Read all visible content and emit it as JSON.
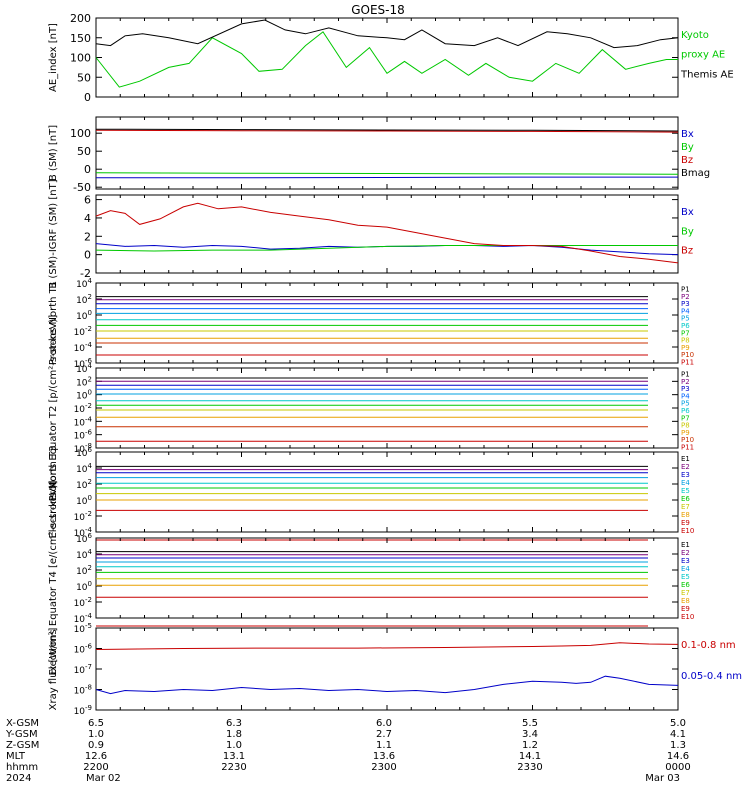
{
  "title": "GOES-18",
  "colors": {
    "black": "#000000",
    "green": "#00c800",
    "red": "#c80000",
    "blue": "#0000c8"
  },
  "chart_data": [
    {
      "type": "line",
      "ylabel": "AE_index [nT]",
      "ylim": [
        0,
        200
      ],
      "yticks": [
        "0",
        "50",
        "100",
        "150",
        "200"
      ],
      "x_range_hours": [
        0,
        2
      ],
      "series": [
        {
          "name": "Kyoto proxy AE",
          "color_key": "green",
          "x": [
            0,
            0.08,
            0.15,
            0.25,
            0.32,
            0.4,
            0.5,
            0.56,
            0.64,
            0.72,
            0.78,
            0.86,
            0.94,
            1.0,
            1.06,
            1.12,
            1.2,
            1.28,
            1.34,
            1.42,
            1.5,
            1.58,
            1.66,
            1.74,
            1.82,
            1.9,
            1.96,
            2.0
          ],
          "values": [
            100,
            25,
            40,
            75,
            85,
            150,
            110,
            65,
            70,
            130,
            165,
            75,
            125,
            60,
            90,
            60,
            95,
            55,
            85,
            50,
            40,
            85,
            60,
            120,
            70,
            85,
            95,
            95
          ]
        },
        {
          "name": "Themis AE",
          "color_key": "black",
          "x": [
            0,
            0.05,
            0.1,
            0.16,
            0.25,
            0.35,
            0.5,
            0.58,
            0.65,
            0.72,
            0.8,
            0.9,
            1.0,
            1.06,
            1.12,
            1.2,
            1.3,
            1.38,
            1.45,
            1.55,
            1.62,
            1.7,
            1.78,
            1.86,
            1.94,
            2.0
          ],
          "values": [
            135,
            130,
            155,
            160,
            150,
            135,
            185,
            195,
            170,
            160,
            175,
            155,
            150,
            145,
            170,
            135,
            130,
            150,
            130,
            165,
            160,
            150,
            125,
            130,
            145,
            150
          ]
        }
      ]
    },
    {
      "type": "line",
      "ylabel": "B (SM) [nT]",
      "ylim": [
        -55,
        145
      ],
      "yticks": [
        "-50",
        "0",
        "50",
        "100"
      ],
      "x_range_hours": [
        0,
        2
      ],
      "series": [
        {
          "name": "Bx",
          "color_key": "blue",
          "x": [
            0,
            0.5,
            1.0,
            1.5,
            2.0
          ],
          "values": [
            -24,
            -24,
            -23,
            -22,
            -22
          ]
        },
        {
          "name": "By",
          "color_key": "green",
          "x": [
            0,
            0.5,
            1.0,
            1.5,
            2.0
          ],
          "values": [
            -10,
            -11,
            -12,
            -13,
            -14
          ]
        },
        {
          "name": "Bz",
          "color_key": "red",
          "x": [
            0,
            0.5,
            1.0,
            1.5,
            2.0
          ],
          "values": [
            108,
            107,
            106,
            105,
            103
          ]
        },
        {
          "name": "Bmag",
          "color_key": "black",
          "x": [
            0,
            0.5,
            1.0,
            1.5,
            2.0
          ],
          "values": [
            111,
            110,
            109,
            108,
            106
          ]
        }
      ]
    },
    {
      "type": "line",
      "ylabel": "B (SM)-IGRF (SM) [nT]",
      "ylim": [
        -2,
        6.5
      ],
      "yticks": [
        "-2",
        "0",
        "2",
        "4",
        "6"
      ],
      "x_range_hours": [
        0,
        2
      ],
      "series": [
        {
          "name": "Bx",
          "color_key": "blue",
          "x": [
            0,
            0.1,
            0.2,
            0.3,
            0.4,
            0.5,
            0.6,
            0.7,
            0.8,
            0.9,
            1.0,
            1.1,
            1.2,
            1.3,
            1.4,
            1.5,
            1.6,
            1.7,
            1.8,
            1.9,
            2.0
          ],
          "values": [
            1.2,
            0.9,
            1.0,
            0.8,
            1.0,
            0.9,
            0.6,
            0.7,
            0.9,
            0.8,
            0.9,
            0.9,
            1.0,
            1.0,
            0.9,
            1.0,
            0.8,
            0.5,
            0.3,
            0.1,
            0.0
          ]
        },
        {
          "name": "By",
          "color_key": "green",
          "x": [
            0,
            0.2,
            0.4,
            0.6,
            0.8,
            1.0,
            1.2,
            1.4,
            1.6,
            1.8,
            2.0
          ],
          "values": [
            0.5,
            0.4,
            0.5,
            0.5,
            0.7,
            0.9,
            1.0,
            1.0,
            1.0,
            1.0,
            1.0
          ]
        },
        {
          "name": "Bz",
          "color_key": "red",
          "x": [
            0,
            0.05,
            0.1,
            0.15,
            0.22,
            0.3,
            0.35,
            0.42,
            0.5,
            0.6,
            0.7,
            0.8,
            0.9,
            1.0,
            1.1,
            1.2,
            1.3,
            1.4,
            1.5,
            1.6,
            1.7,
            1.8,
            1.9,
            2.0
          ],
          "values": [
            4.2,
            4.8,
            4.5,
            3.3,
            3.9,
            5.2,
            5.6,
            5.0,
            5.2,
            4.6,
            4.2,
            3.8,
            3.2,
            3.0,
            2.4,
            1.8,
            1.2,
            1.0,
            1.0,
            0.9,
            0.4,
            -0.2,
            -0.5,
            -0.9
          ]
        }
      ]
    },
    {
      "type": "line",
      "log_scale": true,
      "ylabel": "Protons North T1",
      "ylim_log10": [
        -6,
        4
      ],
      "ytick_exponents": [
        -6,
        -4,
        -2,
        0,
        2,
        4
      ],
      "x_range_hours": [
        0,
        2
      ],
      "series": [
        {
          "name": "P1",
          "color_key": "p1",
          "values": [
            2.3
          ]
        },
        {
          "name": "P2",
          "color_key": "p2",
          "values": [
            1.9
          ]
        },
        {
          "name": "P3",
          "color_key": "p3",
          "values": [
            1.4
          ]
        },
        {
          "name": "P4",
          "color_key": "p4",
          "values": [
            0.8
          ]
        },
        {
          "name": "P5",
          "color_key": "p5",
          "values": [
            0.2
          ]
        },
        {
          "name": "P6",
          "color_key": "p6",
          "values": [
            -0.6
          ]
        },
        {
          "name": "P7",
          "color_key": "p7",
          "values": [
            -1.3
          ]
        },
        {
          "name": "P8",
          "color_key": "p8",
          "values": [
            -2.0
          ]
        },
        {
          "name": "P9",
          "color_key": "p9",
          "values": [
            -2.9
          ]
        },
        {
          "name": "P10",
          "color_key": "p10",
          "values": [
            -3.5
          ]
        },
        {
          "name": "P11",
          "color_key": "p11",
          "values": [
            -5.0
          ]
        }
      ]
    },
    {
      "type": "line",
      "log_scale": true,
      "ylabel": "Protons Equator T2 [p/(cm²-s-sr-keV)]",
      "ylim_log10": [
        -8,
        4
      ],
      "ytick_exponents": [
        -8,
        -6,
        -4,
        -2,
        0,
        2,
        4
      ],
      "x_range_hours": [
        0,
        2
      ],
      "series": [
        {
          "name": "P1",
          "color_key": "p1",
          "values": [
            2.5
          ]
        },
        {
          "name": "P2",
          "color_key": "p2",
          "values": [
            2.0
          ]
        },
        {
          "name": "P3",
          "color_key": "p3",
          "values": [
            1.4
          ]
        },
        {
          "name": "P4",
          "color_key": "p4",
          "values": [
            0.8
          ]
        },
        {
          "name": "P5",
          "color_key": "p5",
          "values": [
            0.1
          ]
        },
        {
          "name": "P6",
          "color_key": "p6",
          "values": [
            -0.9
          ]
        },
        {
          "name": "P7",
          "color_key": "p7",
          "values": [
            -1.6
          ]
        },
        {
          "name": "P8",
          "color_key": "p8",
          "values": [
            -2.3
          ]
        },
        {
          "name": "P9",
          "color_key": "p9",
          "values": [
            -3.4
          ]
        },
        {
          "name": "P10",
          "color_key": "p10",
          "values": [
            -4.8
          ]
        },
        {
          "name": "P11",
          "color_key": "p11",
          "values": [
            -7.0
          ]
        }
      ]
    },
    {
      "type": "line",
      "log_scale": true,
      "ylabel": "Electrons North T3",
      "ylim_log10": [
        -4,
        6
      ],
      "ytick_exponents": [
        -4,
        -2,
        0,
        2,
        4,
        6
      ],
      "x_range_hours": [
        0,
        2
      ],
      "series": [
        {
          "name": "E1",
          "color_key": "e1",
          "values": [
            4.2
          ]
        },
        {
          "name": "E2",
          "color_key": "e2",
          "values": [
            3.8
          ]
        },
        {
          "name": "E3",
          "color_key": "e3",
          "values": [
            3.4
          ]
        },
        {
          "name": "E4",
          "color_key": "e4",
          "values": [
            2.8
          ]
        },
        {
          "name": "E5",
          "color_key": "e5",
          "values": [
            2.1
          ]
        },
        {
          "name": "E6",
          "color_key": "e6",
          "values": [
            1.5
          ]
        },
        {
          "name": "E7",
          "color_key": "e7",
          "values": [
            0.8
          ]
        },
        {
          "name": "E8",
          "color_key": "e8",
          "values": [
            0.0
          ]
        },
        {
          "name": "E9",
          "color_key": "e9",
          "values": [
            -1.3
          ]
        },
        {
          "name": "E10",
          "color_key": "e10",
          "values": [
            -5.0
          ]
        }
      ]
    },
    {
      "type": "line",
      "log_scale": true,
      "ylabel": "Electrons Equator T4 [e/(cm²-s-sr-keV)]",
      "ylim_log10": [
        -4,
        6
      ],
      "ytick_exponents": [
        -4,
        -2,
        0,
        2,
        4,
        6
      ],
      "x_range_hours": [
        0,
        2
      ],
      "series": [
        {
          "name": "E1",
          "color_key": "e1",
          "values": [
            4.3
          ]
        },
        {
          "name": "E2",
          "color_key": "e2",
          "values": [
            3.9
          ]
        },
        {
          "name": "E3",
          "color_key": "e3",
          "values": [
            3.5
          ]
        },
        {
          "name": "E4",
          "color_key": "e4",
          "values": [
            3.0
          ]
        },
        {
          "name": "E5",
          "color_key": "e5",
          "values": [
            2.4
          ]
        },
        {
          "name": "E6",
          "color_key": "e6",
          "values": [
            1.7
          ]
        },
        {
          "name": "E7",
          "color_key": "e7",
          "values": [
            0.9
          ]
        },
        {
          "name": "E8",
          "color_key": "e8",
          "values": [
            0.1
          ]
        },
        {
          "name": "E9",
          "color_key": "e9",
          "values": [
            -1.4
          ]
        },
        {
          "name": "E10",
          "color_key": "e10",
          "values": [
            -5.0
          ]
        }
      ]
    },
    {
      "type": "line",
      "log_scale": true,
      "ylabel": "Xray flux [W/m²]",
      "ylim_log10": [
        -9,
        -5
      ],
      "ytick_exponents": [
        -9,
        -8,
        -7,
        -6,
        -5
      ],
      "x_range_hours": [
        0,
        2
      ],
      "series": [
        {
          "name": "0.1-0.8 nm",
          "color_key": "red",
          "x": [
            0,
            0.3,
            0.6,
            0.9,
            1.2,
            1.5,
            1.6,
            1.7,
            1.8,
            1.9,
            2.0
          ],
          "values": [
            -6.05,
            -6.0,
            -5.98,
            -5.98,
            -5.95,
            -5.9,
            -5.88,
            -5.85,
            -5.72,
            -5.78,
            -5.8
          ]
        },
        {
          "name": "0.05-0.4 nm",
          "color_key": "blue",
          "x": [
            0,
            0.05,
            0.1,
            0.2,
            0.3,
            0.4,
            0.5,
            0.6,
            0.7,
            0.8,
            0.9,
            1.0,
            1.1,
            1.2,
            1.3,
            1.4,
            1.5,
            1.6,
            1.65,
            1.7,
            1.75,
            1.8,
            1.9,
            2.0
          ],
          "values": [
            -8.0,
            -8.2,
            -8.05,
            -8.1,
            -8.0,
            -8.05,
            -7.9,
            -8.0,
            -7.95,
            -8.05,
            -8.0,
            -8.1,
            -8.05,
            -8.15,
            -8.0,
            -7.75,
            -7.6,
            -7.65,
            -7.7,
            -7.65,
            -7.35,
            -7.45,
            -7.75,
            -7.8
          ]
        }
      ]
    }
  ],
  "legends": [
    {
      "items": [
        {
          "text": "Kyoto",
          "color_key": "green"
        },
        {
          "text": "proxy AE",
          "color_key": "green"
        },
        {
          "text": "Themis AE",
          "color_key": "black"
        }
      ]
    },
    {
      "items": [
        {
          "text": "Bx",
          "color_key": "blue"
        },
        {
          "text": "By",
          "color_key": "green"
        },
        {
          "text": "Bz",
          "color_key": "red"
        },
        {
          "text": "Bmag",
          "color_key": "black"
        }
      ]
    },
    {
      "items": [
        {
          "text": "Bx",
          "color_key": "blue"
        },
        {
          "text": "By",
          "color_key": "green"
        },
        {
          "text": "Bz",
          "color_key": "red"
        }
      ]
    },
    {
      "items": [
        {
          "text": "P1"
        },
        {
          "text": "P2"
        },
        {
          "text": "P3"
        },
        {
          "text": "P4"
        },
        {
          "text": "P5"
        },
        {
          "text": "P6"
        },
        {
          "text": "P7"
        },
        {
          "text": "P8"
        },
        {
          "text": "P9"
        },
        {
          "text": "P10"
        },
        {
          "text": "P11"
        }
      ]
    },
    {
      "items": [
        {
          "text": "P1"
        },
        {
          "text": "P2"
        },
        {
          "text": "P3"
        },
        {
          "text": "P4"
        },
        {
          "text": "P5"
        },
        {
          "text": "P6"
        },
        {
          "text": "P7"
        },
        {
          "text": "P8"
        },
        {
          "text": "P9"
        },
        {
          "text": "P10"
        },
        {
          "text": "P11"
        }
      ]
    },
    {
      "items": [
        {
          "text": "E1"
        },
        {
          "text": "E2"
        },
        {
          "text": "E3"
        },
        {
          "text": "E4"
        },
        {
          "text": "E5"
        },
        {
          "text": "E6"
        },
        {
          "text": "E7"
        },
        {
          "text": "E8"
        },
        {
          "text": "E9"
        },
        {
          "text": "E10"
        }
      ]
    },
    {
      "items": [
        {
          "text": "E1"
        },
        {
          "text": "E2"
        },
        {
          "text": "E3"
        },
        {
          "text": "E4"
        },
        {
          "text": "E5"
        },
        {
          "text": "E6"
        },
        {
          "text": "E7"
        },
        {
          "text": "E8"
        },
        {
          "text": "E9"
        },
        {
          "text": "E10"
        }
      ]
    },
    {
      "items": [
        {
          "text": "0.1-0.8 nm",
          "color_key": "red"
        },
        {
          "text": "0.05-0.4 nm",
          "color_key": "blue"
        }
      ]
    }
  ],
  "channel_colors": {
    "p1": "#000000",
    "p2": "#7a007a",
    "p3": "#0000c8",
    "p4": "#0060ff",
    "p5": "#00a0e0",
    "p6": "#00c8c8",
    "p7": "#00c800",
    "p8": "#c8c800",
    "p9": "#e8a000",
    "p10": "#c83000",
    "p11": "#c80000",
    "e1": "#000000",
    "e2": "#7a007a",
    "e3": "#0000c8",
    "e4": "#00a0e0",
    "e5": "#00c8c8",
    "e6": "#00c800",
    "e7": "#c8c800",
    "e8": "#e8a000",
    "e9": "#c80000",
    "e10": "#c80000"
  },
  "footer": {
    "rows": [
      {
        "label": "X-GSM",
        "values": [
          "6.5",
          "6.3",
          "6.0",
          "5.5",
          "5.0"
        ]
      },
      {
        "label": "Y-GSM",
        "values": [
          "1.0",
          "1.8",
          "2.7",
          "3.4",
          "4.1"
        ]
      },
      {
        "label": "Z-GSM",
        "values": [
          "0.9",
          "1.0",
          "1.1",
          "1.2",
          "1.3"
        ]
      },
      {
        "label": "MLT",
        "values": [
          "12.6",
          "13.1",
          "13.6",
          "14.1",
          "14.6"
        ]
      },
      {
        "label": "hhmm",
        "values": [
          "2200",
          "2230",
          "2300",
          "2330",
          "0000"
        ]
      },
      {
        "label": "2024",
        "values": [
          "Mar 02",
          "",
          "",
          "",
          "Mar 03"
        ]
      }
    ]
  }
}
